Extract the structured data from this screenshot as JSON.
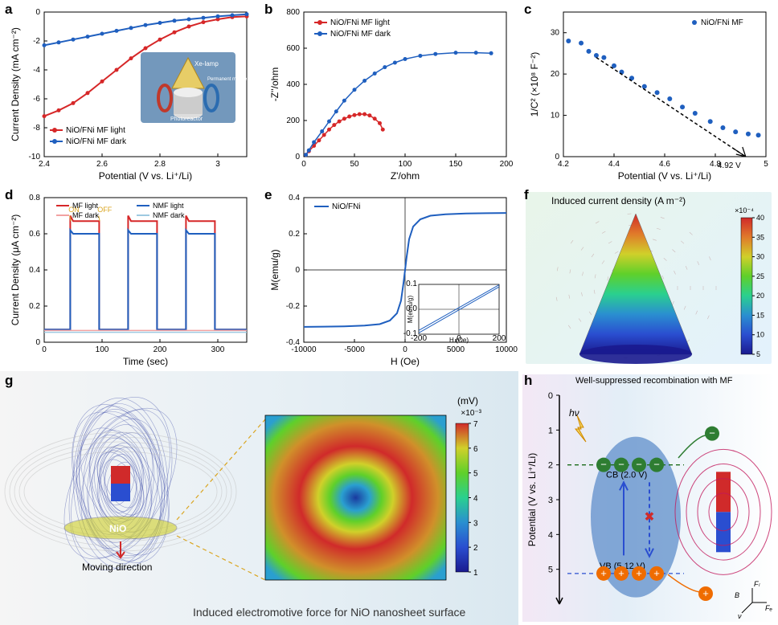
{
  "panel_a": {
    "label": "a",
    "type": "line-scatter",
    "xlabel": "Potential (V vs. Li⁺/Li)",
    "ylabel": "Current Density (mA cm⁻²)",
    "xlim": [
      2.4,
      3.1
    ],
    "xtick_step": 0.2,
    "ylim": [
      -10,
      0
    ],
    "ytick_step": 2,
    "series": [
      {
        "name": "NiO/FNi MF light",
        "color": "#d62728",
        "x": [
          2.4,
          2.45,
          2.5,
          2.55,
          2.6,
          2.65,
          2.7,
          2.75,
          2.8,
          2.85,
          2.9,
          2.95,
          3.0,
          3.05,
          3.1
        ],
        "y": [
          -7.2,
          -6.8,
          -6.3,
          -5.6,
          -4.8,
          -4.0,
          -3.2,
          -2.5,
          -1.9,
          -1.4,
          -1.0,
          -0.7,
          -0.5,
          -0.35,
          -0.3
        ]
      },
      {
        "name": "NiO/FNi MF dark",
        "color": "#1f5fbf",
        "x": [
          2.4,
          2.45,
          2.5,
          2.55,
          2.6,
          2.65,
          2.7,
          2.75,
          2.8,
          2.85,
          2.9,
          2.95,
          3.0,
          3.05,
          3.1
        ],
        "y": [
          -2.3,
          -2.1,
          -1.9,
          -1.7,
          -1.5,
          -1.3,
          -1.1,
          -0.9,
          -0.75,
          -0.6,
          -0.5,
          -0.4,
          -0.3,
          -0.22,
          -0.15
        ]
      }
    ],
    "inset": {
      "labels": [
        "Xe-lamp",
        "Photoreactor",
        "Permanent magnet"
      ],
      "bg_color": "#6b92b8"
    },
    "label_fontsize": 12,
    "tick_fontsize": 10
  },
  "panel_b": {
    "label": "b",
    "type": "nyquist",
    "xlabel": "Z'/ohm",
    "ylabel": "-Z''/ohm",
    "xlim": [
      0,
      200
    ],
    "xtick_step": 50,
    "ylim": [
      0,
      800
    ],
    "ytick_step": 200,
    "series": [
      {
        "name": "NiO/FNi MF light",
        "color": "#d62728",
        "x": [
          2,
          5,
          10,
          15,
          20,
          25,
          30,
          35,
          40,
          45,
          50,
          55,
          60,
          65,
          70,
          75,
          78
        ],
        "y": [
          10,
          30,
          60,
          90,
          120,
          150,
          175,
          195,
          210,
          222,
          230,
          235,
          235,
          228,
          210,
          185,
          150
        ]
      },
      {
        "name": "NiO/FNi MF dark",
        "color": "#1f5fbf",
        "x": [
          2,
          5,
          10,
          18,
          25,
          32,
          40,
          50,
          60,
          70,
          80,
          90,
          100,
          115,
          130,
          150,
          170,
          185
        ],
        "y": [
          10,
          35,
          80,
          140,
          195,
          250,
          310,
          370,
          420,
          460,
          495,
          520,
          540,
          558,
          568,
          575,
          575,
          572
        ]
      }
    ],
    "label_fontsize": 12,
    "tick_fontsize": 10
  },
  "panel_c": {
    "label": "c",
    "type": "mott-schottky",
    "xlabel": "Potential (V vs. Li⁺/Li)",
    "ylabel": "1/C² (×10⁸ F⁻²)",
    "xlim": [
      4.2,
      5.0
    ],
    "xtick_step": 0.2,
    "ylim": [
      0,
      35
    ],
    "yticks": [
      0,
      10,
      20,
      30
    ],
    "series_name": "NiO/FNi MF",
    "series_color": "#1f5fbf",
    "points_x": [
      4.22,
      4.27,
      4.3,
      4.33,
      4.36,
      4.4,
      4.43,
      4.47,
      4.52,
      4.57,
      4.62,
      4.67,
      4.72,
      4.78,
      4.83,
      4.88,
      4.93,
      4.97
    ],
    "points_y": [
      28,
      27.5,
      25.5,
      24.5,
      24,
      22,
      20.5,
      19,
      17,
      15.5,
      14,
      12,
      10.5,
      8.5,
      7,
      6,
      5.5,
      5.2
    ],
    "fit_x": [
      4.33,
      4.92
    ],
    "fit_y": [
      24,
      0
    ],
    "intercept_label": "4.92 V",
    "label_fontsize": 12,
    "tick_fontsize": 10
  },
  "panel_d": {
    "label": "d",
    "type": "transient",
    "xlabel": "Time (sec)",
    "ylabel": "Current Density (μA cm⁻²)",
    "xlim": [
      0,
      350
    ],
    "xtick_step": 100,
    "ylim": [
      0,
      0.8
    ],
    "ytick_step": 0.2,
    "on_label": "ON",
    "off_label": "OFF",
    "on_off_color": "#daa520",
    "legend": [
      {
        "name": "MF light",
        "color": "#d62728"
      },
      {
        "name": "NMF light",
        "color": "#1f5fbf"
      },
      {
        "name": "MF dark",
        "color": "#f2a2a2"
      },
      {
        "name": "NMF dark",
        "color": "#9ecae1"
      }
    ],
    "pulses": {
      "on": [
        45,
        145,
        245
      ],
      "off": [
        95,
        195,
        295
      ]
    },
    "mf_light_high": 0.67,
    "nmf_light_high": 0.6,
    "dark_level": 0.07,
    "label_fontsize": 12,
    "tick_fontsize": 10
  },
  "panel_e": {
    "label": "e",
    "type": "hysteresis",
    "xlabel": "H (Oe)",
    "ylabel": "M(emu/g)",
    "xlim": [
      -10000,
      10000
    ],
    "xtick_step": 5000,
    "ylim": [
      -0.4,
      0.4
    ],
    "ytick_step": 0.2,
    "series_name": "NiO/FNi",
    "series_color": "#1f5fbf",
    "curve_x": [
      -10000,
      -8000,
      -6000,
      -4000,
      -2500,
      -1500,
      -800,
      -400,
      -150,
      0,
      150,
      400,
      800,
      1500,
      2500,
      4000,
      6000,
      8000,
      10000
    ],
    "curve_y": [
      -0.315,
      -0.314,
      -0.312,
      -0.308,
      -0.3,
      -0.28,
      -0.24,
      -0.17,
      -0.07,
      0,
      0.07,
      0.17,
      0.24,
      0.28,
      0.3,
      0.308,
      0.312,
      0.314,
      0.315
    ],
    "inset": {
      "xlabel": "H (Oe)",
      "ylabel": "M(emu/g)",
      "xlim": [
        -200,
        200
      ],
      "ylim": [
        -0.1,
        0.1
      ]
    },
    "label_fontsize": 12,
    "tick_fontsize": 10
  },
  "panel_f": {
    "label": "f",
    "title": "Induced current density (A m⁻²)",
    "colorbar": {
      "min": 5,
      "max": 40,
      "step": 5,
      "exponent": "×10⁻⁴",
      "stops": [
        "#1a1a8f",
        "#2a4ed0",
        "#2a8fd0",
        "#2ad08f",
        "#5fd02a",
        "#d0d02a",
        "#e07a2a",
        "#d02a2a"
      ]
    },
    "bg_color": "#e7f3ec"
  },
  "panel_g": {
    "label": "g",
    "caption": "Induced electromotive force for NiO nanosheet surface",
    "moving_label": "Moving direction",
    "nio_label": "NiO",
    "colorbar": {
      "unit": "(mV)",
      "exponent": "×10⁻³",
      "ticks": [
        1,
        2,
        3,
        4,
        5,
        6,
        7
      ],
      "stops": [
        "#1a1a8f",
        "#2a4ed0",
        "#2a8fd0",
        "#2ad08f",
        "#5fd02a",
        "#d0d02a",
        "#d02a2a"
      ]
    },
    "bg_color": "#e7eff5"
  },
  "panel_h": {
    "label": "h",
    "title": "Well-suppressed recombination with MF",
    "ylabel": "Potential (V vs. Li⁺/Li)",
    "ylim": [
      0,
      6
    ],
    "ytick_step": 1,
    "cb_label": "CB (2.0 V)",
    "cb_v": 2.0,
    "vb_label": "VB (5.12 V)",
    "vb_v": 5.12,
    "hv_label": "hν",
    "force_labels": [
      "Fₗ",
      "B",
      "ν",
      "Fₑ"
    ],
    "electron_color": "#2e7d32",
    "hole_color": "#ef6c00",
    "band_fill": "#5588c7",
    "arrow_color": "#c2185b",
    "bg_gradient": [
      "#f3e8f5",
      "#e3eef7",
      "#ffffff"
    ]
  }
}
